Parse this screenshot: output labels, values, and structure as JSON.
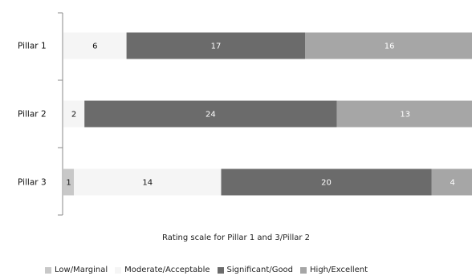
{
  "chart_data": {
    "type": "bar",
    "orientation": "horizontal",
    "stacked": true,
    "categories": [
      "Pillar 1",
      "Pillar 2",
      "Pillar 3"
    ],
    "series": [
      {
        "name": "Low/Marginal",
        "color": "#c8c8c8",
        "values": [
          0,
          0,
          1
        ]
      },
      {
        "name": "Moderate/Acceptable",
        "color": "#f5f5f5",
        "values": [
          6,
          2,
          14
        ]
      },
      {
        "name": "Significant/Good",
        "color": "#6b6b6b",
        "values": [
          17,
          24,
          20
        ]
      },
      {
        "name": "High/Excellent",
        "color": "#a6a6a6",
        "values": [
          16,
          13,
          4
        ]
      }
    ],
    "xlabel": "Rating scale for Pillar 1 and 3/Pillar 2",
    "ylabel": "",
    "xlim": [
      0,
      39
    ],
    "grid": false,
    "legend": "bottom"
  }
}
